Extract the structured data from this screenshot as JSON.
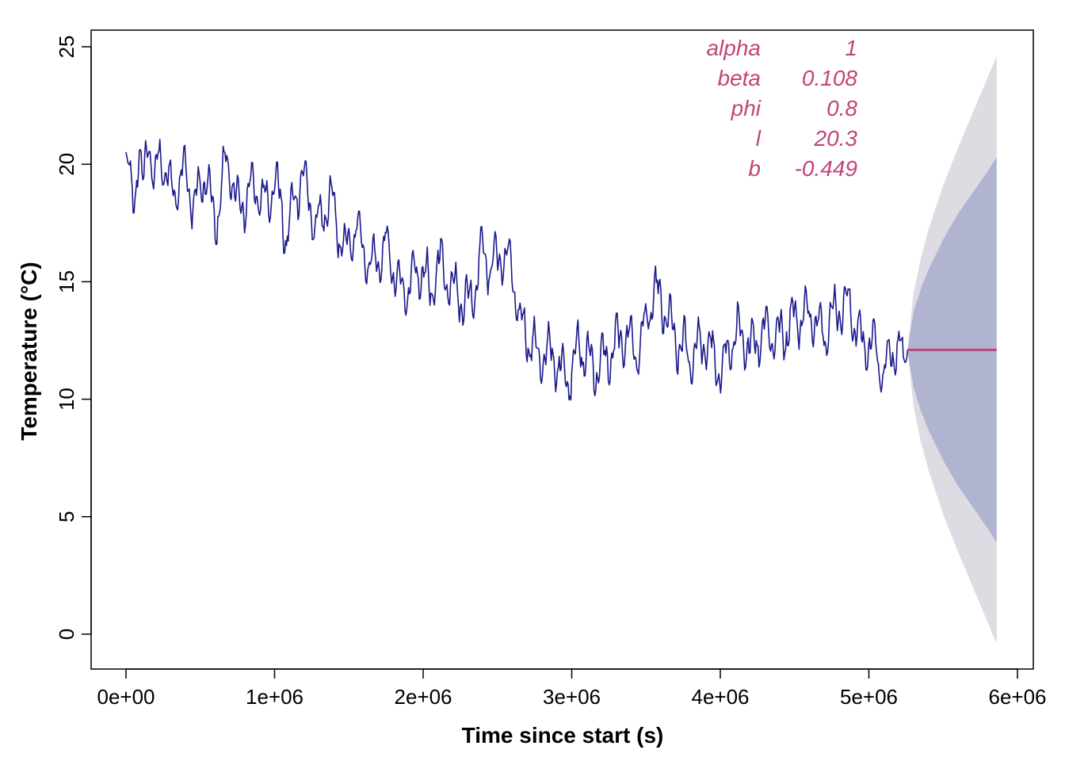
{
  "colors": {
    "observed_line": "#1a1a8c",
    "forecast_line": "#c2447a",
    "interval_80": "#b0b4d0",
    "interval_95": "#dcdce2",
    "param_text": "#c2447a",
    "axis": "#000000"
  },
  "chart_data": {
    "type": "line",
    "title": "",
    "xlabel": "Time since start (s)",
    "ylabel": "Temperature (°C)",
    "xlim": [
      -240000,
      6000000
    ],
    "ylim": [
      -1.5,
      25.5
    ],
    "x_ticks": [
      0,
      1000000,
      2000000,
      3000000,
      4000000,
      5000000,
      6000000
    ],
    "x_tick_labels": [
      "0e+00",
      "1e+06",
      "2e+06",
      "3e+06",
      "4e+06",
      "5e+06",
      "6e+06"
    ],
    "y_ticks": [
      0,
      5,
      10,
      15,
      20,
      25
    ],
    "y_tick_labels": [
      "0",
      "5",
      "10",
      "15",
      "20",
      "25"
    ],
    "grid": false,
    "legend": "none",
    "observed_anchors": [
      [
        0,
        20.0
      ],
      [
        50000,
        18.3
      ],
      [
        90000,
        20.9
      ],
      [
        110000,
        18.4
      ],
      [
        150000,
        21.6
      ],
      [
        190000,
        18.9
      ],
      [
        230000,
        20.6
      ],
      [
        290000,
        19.0
      ],
      [
        320000,
        18.9
      ],
      [
        400000,
        19.8
      ],
      [
        460000,
        18.1
      ],
      [
        530000,
        19.7
      ],
      [
        600000,
        17.4
      ],
      [
        680000,
        20.3
      ],
      [
        760000,
        18.0
      ],
      [
        850000,
        19.1
      ],
      [
        950000,
        18.3
      ],
      [
        1000000,
        19.5
      ],
      [
        1080000,
        16.9
      ],
      [
        1180000,
        19.7
      ],
      [
        1280000,
        17.3
      ],
      [
        1380000,
        18.5
      ],
      [
        1470000,
        16.2
      ],
      [
        1550000,
        17.3
      ],
      [
        1650000,
        15.6
      ],
      [
        1750000,
        16.5
      ],
      [
        1850000,
        14.6
      ],
      [
        1950000,
        15.1
      ],
      [
        2000000,
        15.7
      ],
      [
        2050000,
        14.3
      ],
      [
        2100000,
        15.9
      ],
      [
        2200000,
        14.8
      ],
      [
        2300000,
        14.0
      ],
      [
        2350000,
        14.9
      ],
      [
        2400000,
        16.4
      ],
      [
        2450000,
        15.6
      ],
      [
        2530000,
        16.2
      ],
      [
        2600000,
        15.5
      ],
      [
        2650000,
        13.2
      ],
      [
        2700000,
        12.8
      ],
      [
        2780000,
        11.7
      ],
      [
        2850000,
        12.0
      ],
      [
        2930000,
        11.3
      ],
      [
        2970000,
        10.8
      ],
      [
        3050000,
        12.3
      ],
      [
        3150000,
        11.3
      ],
      [
        3250000,
        11.8
      ],
      [
        3350000,
        12.8
      ],
      [
        3450000,
        12.0
      ],
      [
        3550000,
        14.5
      ],
      [
        3600000,
        14.2
      ],
      [
        3700000,
        12.5
      ],
      [
        3800000,
        11.8
      ],
      [
        3900000,
        12.5
      ],
      [
        4000000,
        11.1
      ],
      [
        4100000,
        12.8
      ],
      [
        4200000,
        12.2
      ],
      [
        4300000,
        13.0
      ],
      [
        4400000,
        12.6
      ],
      [
        4500000,
        13.5
      ],
      [
        4600000,
        13.6
      ],
      [
        4700000,
        12.9
      ],
      [
        4800000,
        14.0
      ],
      [
        4880000,
        13.9
      ],
      [
        4950000,
        12.3
      ],
      [
        5020000,
        12.5
      ],
      [
        5100000,
        11.0
      ],
      [
        5180000,
        12.4
      ],
      [
        5230000,
        11.6
      ],
      [
        5260000,
        12.1
      ]
    ],
    "series": [
      {
        "name": "",
        "role": "forecast",
        "x": [
          5260000,
          5860000
        ],
        "y": [
          12.1,
          12.1
        ]
      }
    ],
    "intervals": [
      {
        "level": 95,
        "x": [
          5260000,
          5300000,
          5350000,
          5400000,
          5500000,
          5600000,
          5700000,
          5800000,
          5860000
        ],
        "upper": [
          12.1,
          14.5,
          16.0,
          17.2,
          19.1,
          20.7,
          22.2,
          23.7,
          24.6
        ],
        "lower": [
          12.1,
          9.7,
          8.2,
          7.0,
          5.1,
          3.5,
          2.0,
          0.5,
          -0.4
        ]
      },
      {
        "level": 80,
        "x": [
          5260000,
          5300000,
          5350000,
          5400000,
          5500000,
          5600000,
          5700000,
          5800000,
          5860000
        ],
        "upper": [
          12.1,
          13.7,
          14.7,
          15.5,
          16.8,
          17.9,
          18.8,
          19.7,
          20.3
        ],
        "lower": [
          12.1,
          10.5,
          9.5,
          8.7,
          7.4,
          6.3,
          5.4,
          4.5,
          3.9
        ]
      }
    ],
    "parameters": [
      {
        "name": "alpha",
        "value": "1"
      },
      {
        "name": "beta",
        "value": "0.108"
      },
      {
        "name": "phi",
        "value": "0.8"
      },
      {
        "name": "l",
        "value": "20.3"
      },
      {
        "name": "b",
        "value": "-0.449"
      }
    ]
  }
}
